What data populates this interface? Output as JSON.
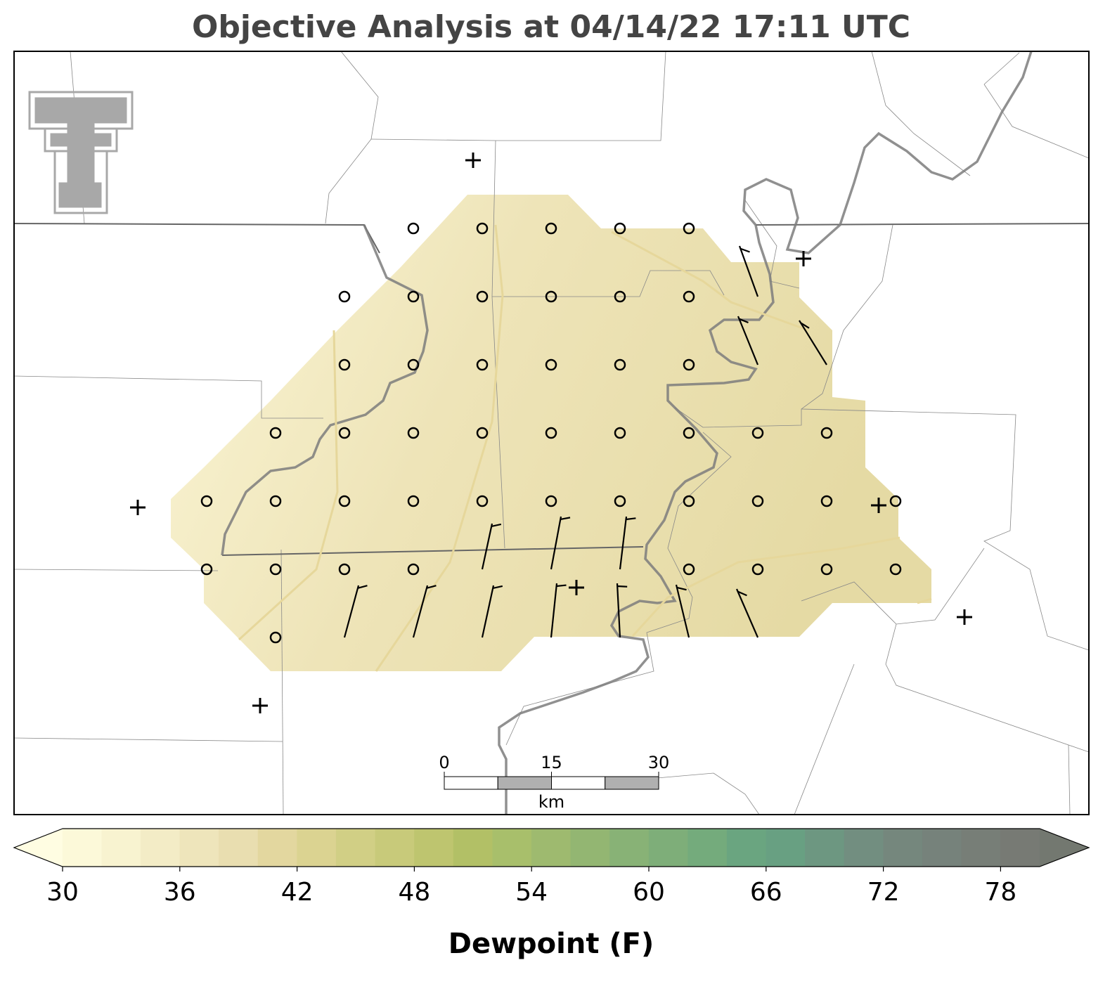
{
  "title": "Objective Analysis at 04/14/22 17:11 UTC",
  "scale_bar": {
    "ticks": [
      0,
      15,
      30
    ],
    "unit": "km"
  },
  "colorbar": {
    "label": "Dewpoint (F)",
    "bounds": [
      30,
      32,
      34,
      36,
      38,
      40,
      42,
      44,
      46,
      48,
      50,
      52,
      54,
      56,
      58,
      60,
      62,
      64,
      66,
      68,
      70,
      72,
      74,
      76,
      78,
      80
    ],
    "colors": [
      "#fcf9d9",
      "#f8f3d0",
      "#f3ecc6",
      "#eee5bb",
      "#e9deb0",
      "#e3d79f",
      "#dbd391",
      "#d1cf85",
      "#c8ca7a",
      "#bec56f",
      "#b2c066",
      "#a8bf6b",
      "#9eba6f",
      "#93b672",
      "#88b276",
      "#7eae79",
      "#74ab7c",
      "#6aa580",
      "#68a082",
      "#6d9781",
      "#728e80",
      "#75877d",
      "#76827b",
      "#777e77",
      "#777a74"
    ],
    "extend_colors": [
      "#fffde2",
      "#737870"
    ],
    "ticks": [
      30,
      36,
      42,
      48,
      54,
      60,
      66,
      72,
      78
    ]
  }
}
